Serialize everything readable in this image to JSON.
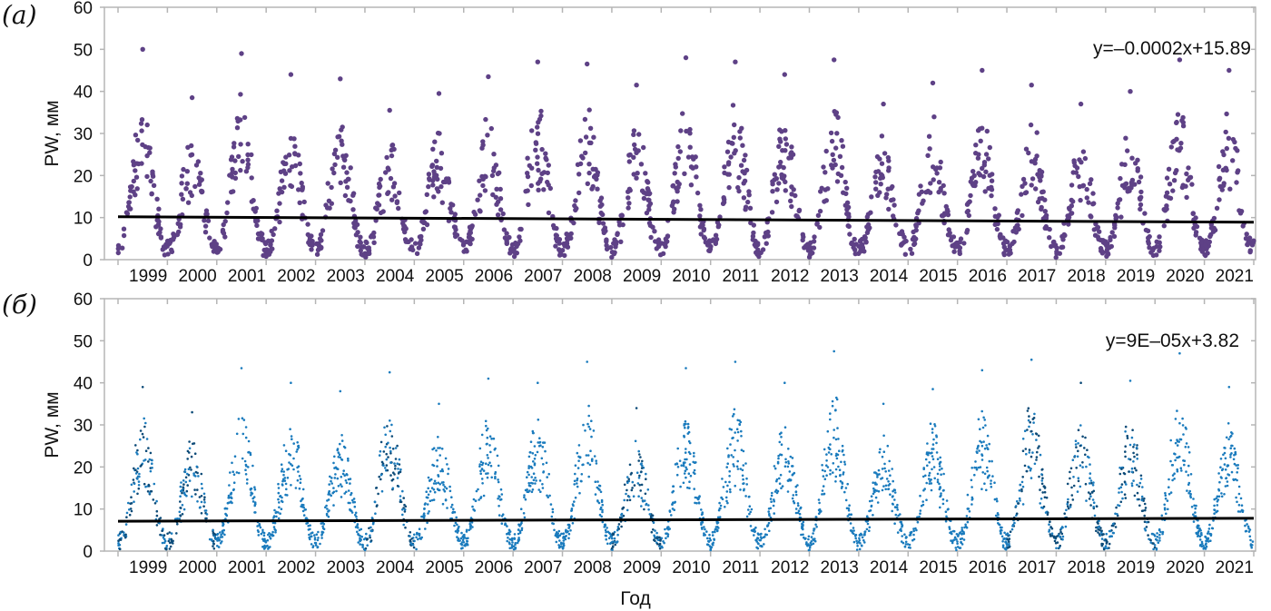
{
  "chart_data": [
    {
      "type": "scatter",
      "panel_label": "(а)",
      "title": "",
      "xlabel": "",
      "ylabel": "PW, мм",
      "ylim": [
        0,
        60
      ],
      "yticks": [
        "0",
        "10",
        "20",
        "30",
        "40",
        "50",
        "60"
      ],
      "xlim": [
        1999,
        2022
      ],
      "xtick_labels": [
        "1999",
        "2000",
        "2001",
        "2002",
        "2003",
        "2004",
        "2005",
        "2006",
        "2007",
        "2008",
        "2009",
        "2010",
        "2011",
        "2012",
        "2013",
        "2014",
        "2015",
        "2016",
        "2017",
        "2018",
        "2019",
        "2020",
        "2021"
      ],
      "color": "#5e4186",
      "marker": "large-dot",
      "annual_peaks": [
        50,
        38.5,
        49,
        44,
        43,
        35.5,
        39.5,
        43.5,
        47,
        46.5,
        41.5,
        48,
        47,
        44,
        47.5,
        37,
        42,
        45,
        41.5,
        37,
        40,
        47.5,
        45
      ],
      "annual_minimum": 0.5,
      "trend": {
        "equation": "y=–0.0002x+15.89",
        "start_value": 10.2,
        "end_value": 8.9,
        "color": "#000000"
      }
    },
    {
      "type": "scatter",
      "panel_label": "(б)",
      "title": "",
      "xlabel": "Год",
      "ylabel": "PW, мм",
      "ylim": [
        0,
        60
      ],
      "yticks": [
        "0",
        "10",
        "20",
        "30",
        "40",
        "50",
        "60"
      ],
      "xlim": [
        1999,
        2022
      ],
      "xtick_labels": [
        "1999",
        "2000",
        "2001",
        "2002",
        "2003",
        "2004",
        "2005",
        "2006",
        "2007",
        "2008",
        "2009",
        "2010",
        "2011",
        "2012",
        "2013",
        "2014",
        "2015",
        "2016",
        "2017",
        "2018",
        "2019",
        "2020",
        "2021"
      ],
      "color": "#1a7bbd",
      "dark_color": "#0d4b78",
      "marker": "small-dot",
      "annual_peaks": [
        39,
        33,
        43.5,
        40,
        38,
        42.5,
        35,
        41,
        40,
        45,
        34,
        43.5,
        45,
        40,
        47.5,
        35,
        38.5,
        43,
        45.5,
        40,
        40.5,
        47,
        39
      ],
      "annual_minimum": 0.2,
      "trend": {
        "equation": "y=9E–05x+3.82",
        "start_value": 7.1,
        "end_value": 7.8,
        "color": "#000000"
      }
    }
  ]
}
